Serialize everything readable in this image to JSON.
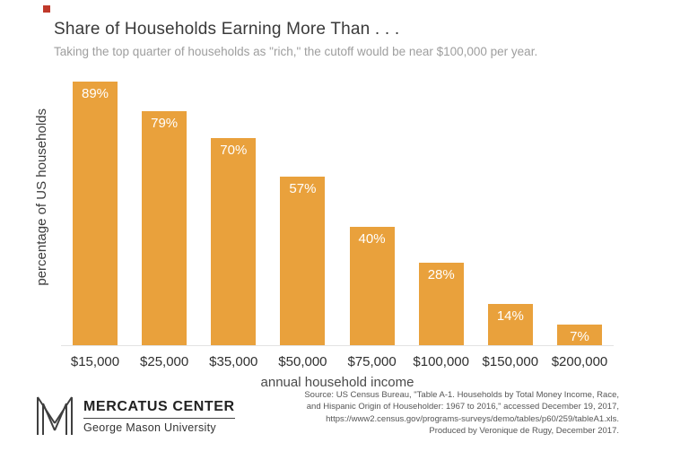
{
  "page": {
    "title": "Share of Households Earning More Than . . .",
    "subtitle": "Taking the top quarter of households as \"rich,\" the cutoff would be near $100,000 per year."
  },
  "chart_data": {
    "type": "bar",
    "categories": [
      "$15,000",
      "$25,000",
      "$35,000",
      "$50,000",
      "$75,000",
      "$100,000",
      "$150,000",
      "$200,000"
    ],
    "values": [
      89,
      79,
      70,
      57,
      40,
      28,
      14,
      7
    ],
    "value_labels": [
      "89%",
      "79%",
      "70%",
      "57%",
      "40%",
      "28%",
      "14%",
      "7%"
    ],
    "title": "Share of Households Earning More Than . . .",
    "subtitle": "Taking the top quarter of households as \"rich,\" the cutoff would be near $100,000 per year.",
    "xlabel": "annual household income",
    "ylabel": "percentage of US households",
    "ylim": [
      0,
      100
    ],
    "grid": false,
    "legend": false,
    "bar_color": "#E9A13C",
    "bar_label_color": "#FFFFFF"
  },
  "footer": {
    "logo_title": "MERCATUS CENTER",
    "logo_subtitle": "George Mason University",
    "source_lines": [
      "Source: US Census Bureau, \"Table A-1. Households by Total Money Income, Race,",
      "and Hispanic Origin of Householder: 1967 to 2016,\" accessed December 19, 2017,",
      "https://www2.census.gov/programs-surveys/demo/tables/p60/259/tableA1.xls.",
      "Produced by Veronique de Rugy, December 2017."
    ]
  }
}
